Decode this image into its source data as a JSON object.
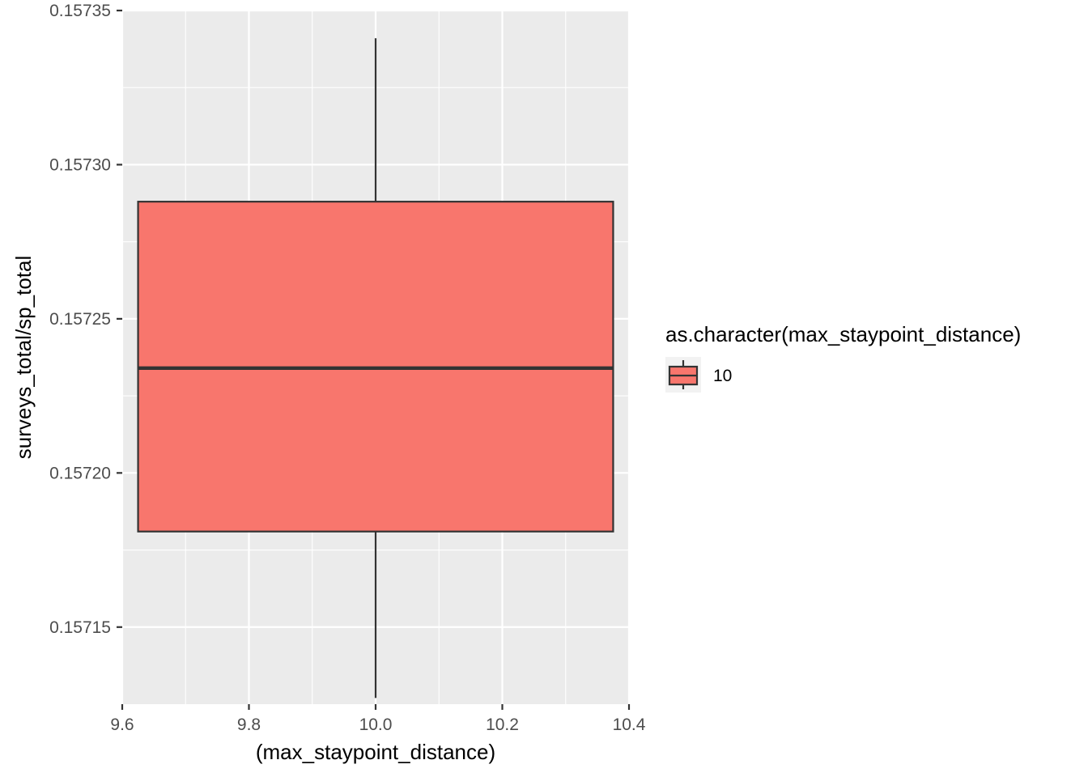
{
  "chart_data": {
    "type": "boxplot",
    "xlabel": "(max_staypoint_distance)",
    "ylabel": "surveys_total/sp_total",
    "xlim": [
      9.6,
      10.4
    ],
    "ylim": [
      0.157125,
      0.15735
    ],
    "x_ticks": [
      9.6,
      9.8,
      10.0,
      10.2,
      10.4
    ],
    "x_tick_labels": [
      "9.6",
      "9.8",
      "10.0",
      "10.2",
      "10.4"
    ],
    "y_ticks": [
      0.15715,
      0.1572,
      0.15725,
      0.1573,
      0.15735
    ],
    "y_tick_labels": [
      "0.15715",
      "0.15720",
      "0.15725",
      "0.15730",
      "0.15735"
    ],
    "grid": true,
    "legend": {
      "title": "as.character(max_staypoint_distance)",
      "position": "right",
      "entries": [
        {
          "label": "10",
          "color": "#f8766d"
        }
      ]
    },
    "boxes": [
      {
        "x": 10.0,
        "width": 0.75,
        "whisker_low": 0.157127,
        "q1": 0.157181,
        "median": 0.157234,
        "q3": 0.157288,
        "whisker_high": 0.157341,
        "fill": "#f8766d",
        "group": "10"
      }
    ]
  }
}
